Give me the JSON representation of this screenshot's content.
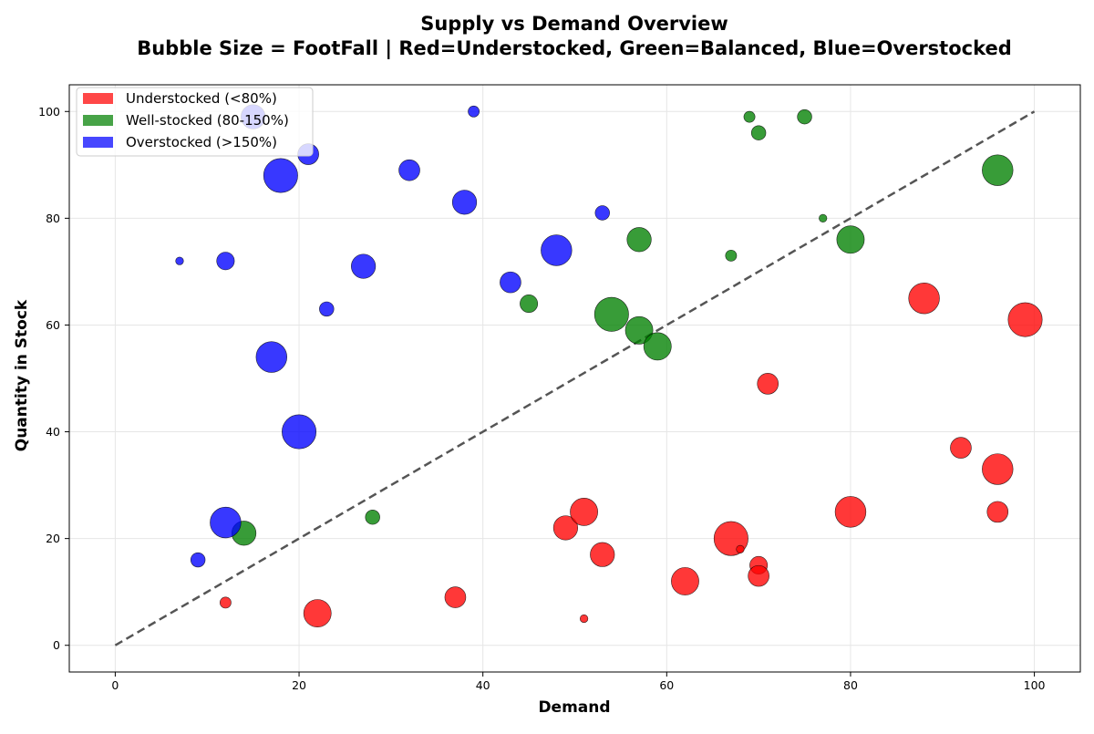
{
  "chart_data": {
    "type": "scatter",
    "title": "Supply vs Demand Overview",
    "subtitle": "Bubble Size = FootFall | Red=Understocked, Green=Balanced, Blue=Overstocked",
    "xlabel": "Demand",
    "ylabel": "Quantity in Stock",
    "xlim": [
      -5,
      105
    ],
    "ylim": [
      -5,
      105
    ],
    "xticks": [
      0,
      20,
      40,
      60,
      80,
      100
    ],
    "yticks": [
      0,
      20,
      40,
      60,
      80,
      100
    ],
    "grid": true,
    "legend_position": "top-left",
    "reference_line": {
      "style": "dashed",
      "color": "#555555",
      "x": [
        0,
        100
      ],
      "y": [
        0,
        100
      ]
    },
    "series": [
      {
        "name": "Understocked (<80%)",
        "color": "#ff0000",
        "points": [
          {
            "x": 12,
            "y": 8,
            "size": 2
          },
          {
            "x": 22,
            "y": 6,
            "size": 7
          },
          {
            "x": 37,
            "y": 9,
            "size": 5
          },
          {
            "x": 49,
            "y": 22,
            "size": 6
          },
          {
            "x": 51,
            "y": 25,
            "size": 7
          },
          {
            "x": 51,
            "y": 5,
            "size": 1
          },
          {
            "x": 53,
            "y": 17,
            "size": 6
          },
          {
            "x": 62,
            "y": 12,
            "size": 7
          },
          {
            "x": 67,
            "y": 20,
            "size": 9
          },
          {
            "x": 68,
            "y": 18,
            "size": 1
          },
          {
            "x": 70,
            "y": 15,
            "size": 4
          },
          {
            "x": 70,
            "y": 13,
            "size": 5
          },
          {
            "x": 71,
            "y": 49,
            "size": 5
          },
          {
            "x": 80,
            "y": 25,
            "size": 8
          },
          {
            "x": 88,
            "y": 65,
            "size": 8
          },
          {
            "x": 92,
            "y": 37,
            "size": 5
          },
          {
            "x": 96,
            "y": 33,
            "size": 8
          },
          {
            "x": 96,
            "y": 25,
            "size": 5
          },
          {
            "x": 99,
            "y": 61,
            "size": 9
          }
        ]
      },
      {
        "name": "Well-stocked (80-150%)",
        "color": "#008000",
        "points": [
          {
            "x": 14,
            "y": 21,
            "size": 6
          },
          {
            "x": 28,
            "y": 24,
            "size": 3
          },
          {
            "x": 45,
            "y": 64,
            "size": 4
          },
          {
            "x": 54,
            "y": 62,
            "size": 9
          },
          {
            "x": 57,
            "y": 76,
            "size": 6
          },
          {
            "x": 57,
            "y": 59,
            "size": 7
          },
          {
            "x": 59,
            "y": 56,
            "size": 7
          },
          {
            "x": 67,
            "y": 73,
            "size": 2
          },
          {
            "x": 69,
            "y": 99,
            "size": 2
          },
          {
            "x": 70,
            "y": 96,
            "size": 3
          },
          {
            "x": 75,
            "y": 99,
            "size": 3
          },
          {
            "x": 77,
            "y": 80,
            "size": 1
          },
          {
            "x": 80,
            "y": 76,
            "size": 7
          },
          {
            "x": 96,
            "y": 89,
            "size": 8
          }
        ]
      },
      {
        "name": "Overstocked (>150%)",
        "color": "#0000ff",
        "points": [
          {
            "x": 7,
            "y": 72,
            "size": 1
          },
          {
            "x": 9,
            "y": 16,
            "size": 3
          },
          {
            "x": 12,
            "y": 72,
            "size": 4
          },
          {
            "x": 12,
            "y": 23,
            "size": 8
          },
          {
            "x": 15,
            "y": 99,
            "size": 6
          },
          {
            "x": 17,
            "y": 54,
            "size": 8
          },
          {
            "x": 18,
            "y": 88,
            "size": 9
          },
          {
            "x": 20,
            "y": 40,
            "size": 9
          },
          {
            "x": 21,
            "y": 92,
            "size": 5
          },
          {
            "x": 23,
            "y": 63,
            "size": 3
          },
          {
            "x": 27,
            "y": 71,
            "size": 6
          },
          {
            "x": 32,
            "y": 89,
            "size": 5
          },
          {
            "x": 38,
            "y": 83,
            "size": 6
          },
          {
            "x": 39,
            "y": 100,
            "size": 2
          },
          {
            "x": 43,
            "y": 68,
            "size": 5
          },
          {
            "x": 48,
            "y": 74,
            "size": 8
          },
          {
            "x": 53,
            "y": 81,
            "size": 3
          }
        ]
      }
    ]
  }
}
